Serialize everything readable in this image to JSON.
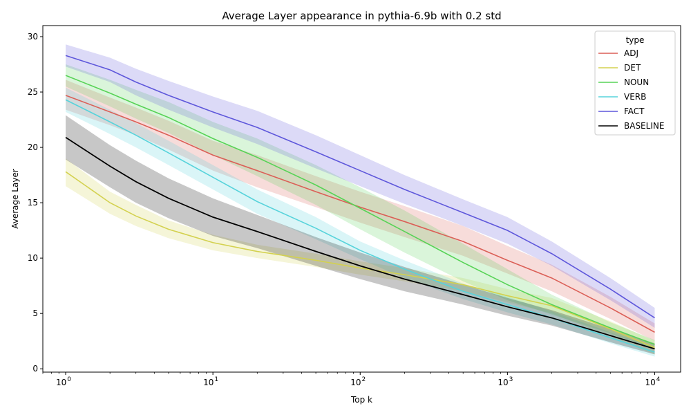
{
  "chart_data": {
    "type": "line",
    "title": "Average Layer appearance in pythia-6.9b with 0.2 std",
    "xlabel": "Top k",
    "ylabel": "Average Layer",
    "xscale": "log",
    "xlim": [
      0.7,
      15000
    ],
    "ylim": [
      -0.3,
      31
    ],
    "x_ticks": [
      {
        "value": 1,
        "base": "10",
        "exp": "0"
      },
      {
        "value": 10,
        "base": "10",
        "exp": "1"
      },
      {
        "value": 100,
        "base": "10",
        "exp": "2"
      },
      {
        "value": 1000,
        "base": "10",
        "exp": "3"
      },
      {
        "value": 10000,
        "base": "10",
        "exp": "4"
      }
    ],
    "y_ticks": [
      0,
      5,
      10,
      15,
      20,
      25,
      30
    ],
    "legend_title": "type",
    "legend_position": "top-right",
    "grid": false,
    "x": [
      1,
      2,
      3,
      5,
      10,
      20,
      50,
      100,
      200,
      500,
      1000,
      2000,
      5000,
      10000
    ],
    "series": [
      {
        "name": "ADJ",
        "color": "#db5f57",
        "values": [
          24.7,
          23.2,
          22.3,
          21.1,
          19.3,
          17.9,
          16.0,
          14.6,
          13.3,
          11.5,
          9.8,
          8.2,
          5.5,
          3.3
        ],
        "lower": [
          23.4,
          22.0,
          21.1,
          19.8,
          17.9,
          16.4,
          14.6,
          13.2,
          11.9,
          10.2,
          8.6,
          7.0,
          4.5,
          2.5
        ],
        "upper": [
          26.1,
          24.5,
          23.6,
          22.4,
          20.6,
          19.3,
          17.4,
          16.0,
          14.7,
          12.9,
          11.1,
          9.4,
          6.5,
          4.1
        ]
      },
      {
        "name": "DET",
        "color": "#d3d14f",
        "values": [
          17.8,
          15.0,
          13.8,
          12.6,
          11.4,
          10.6,
          9.8,
          9.1,
          8.5,
          7.6,
          6.6,
          5.7,
          3.6,
          1.9
        ],
        "lower": [
          16.5,
          14.0,
          12.9,
          11.8,
          10.7,
          10.0,
          9.2,
          8.5,
          7.9,
          7.0,
          6.0,
          5.0,
          2.9,
          1.3
        ],
        "upper": [
          19.0,
          16.0,
          14.8,
          13.4,
          12.1,
          11.2,
          10.4,
          9.7,
          9.1,
          8.2,
          7.2,
          6.4,
          4.3,
          2.5
        ]
      },
      {
        "name": "NOUN",
        "color": "#57d356",
        "values": [
          26.5,
          24.9,
          23.9,
          22.7,
          20.8,
          19.1,
          16.6,
          14.5,
          12.4,
          9.6,
          7.6,
          5.8,
          3.7,
          2.2
        ],
        "lower": [
          25.5,
          23.7,
          22.6,
          21.3,
          19.3,
          17.4,
          14.8,
          12.6,
          10.5,
          7.9,
          6.2,
          4.9,
          3.2,
          1.8
        ],
        "upper": [
          27.5,
          26.1,
          25.2,
          24.1,
          22.3,
          20.8,
          18.4,
          16.4,
          14.3,
          11.3,
          9.0,
          6.7,
          4.2,
          2.6
        ]
      },
      {
        "name": "VERB",
        "color": "#57d3db",
        "values": [
          24.3,
          22.3,
          21.1,
          19.5,
          17.3,
          15.1,
          12.7,
          10.7,
          9.0,
          7.0,
          5.8,
          4.6,
          2.8,
          1.5
        ],
        "lower": [
          23.2,
          21.2,
          20.0,
          18.4,
          16.2,
          14.0,
          11.7,
          9.9,
          8.2,
          6.3,
          5.1,
          4.0,
          2.3,
          1.1
        ],
        "upper": [
          25.4,
          23.4,
          22.2,
          20.6,
          18.4,
          16.2,
          13.7,
          11.5,
          9.8,
          7.7,
          6.5,
          5.2,
          3.3,
          1.9
        ]
      },
      {
        "name": "FACT",
        "color": "#5e57db",
        "values": [
          28.3,
          27.0,
          25.9,
          24.7,
          23.2,
          21.8,
          19.6,
          17.9,
          16.2,
          14.1,
          12.5,
          10.4,
          7.2,
          4.6
        ],
        "lower": [
          27.3,
          25.9,
          24.7,
          23.4,
          21.8,
          20.3,
          18.1,
          16.5,
          14.9,
          12.9,
          11.3,
          9.3,
          6.2,
          3.7
        ],
        "upper": [
          29.3,
          28.1,
          27.1,
          26.0,
          24.6,
          23.3,
          21.1,
          19.3,
          17.5,
          15.3,
          13.7,
          11.5,
          8.2,
          5.5
        ]
      },
      {
        "name": "BASELINE",
        "color": "#000000",
        "values": [
          20.9,
          18.3,
          16.9,
          15.4,
          13.7,
          12.4,
          10.6,
          9.3,
          8.1,
          6.7,
          5.6,
          4.6,
          3.0,
          1.8
        ],
        "lower": [
          18.9,
          16.4,
          15.0,
          13.6,
          12.0,
          10.9,
          9.3,
          8.1,
          7.0,
          5.8,
          4.8,
          3.9,
          2.4,
          1.3
        ],
        "upper": [
          22.9,
          20.2,
          18.8,
          17.2,
          15.4,
          13.9,
          11.9,
          10.5,
          9.2,
          7.6,
          6.4,
          5.3,
          3.6,
          2.3
        ]
      }
    ]
  }
}
